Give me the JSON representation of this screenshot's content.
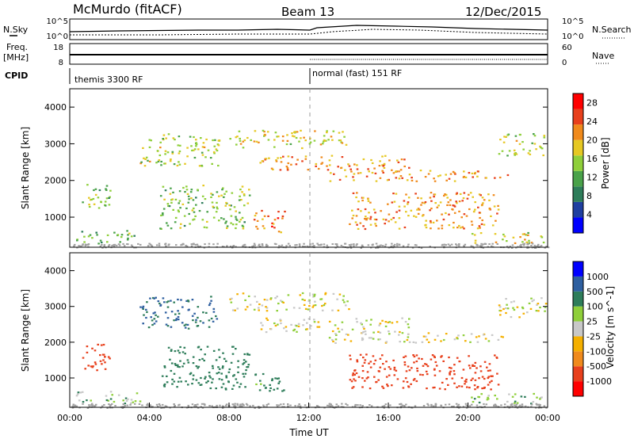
{
  "header": {
    "station": "McMurdo (fitACF)",
    "beam": "Beam 13",
    "date": "12/Dec/2015"
  },
  "top_panel": {
    "left_label": "N.Sky",
    "right_label": "N.Search",
    "left_ticks": [
      "10^5",
      "10^0"
    ],
    "right_ticks": [
      "10^5",
      "10^0"
    ]
  },
  "freq_panel": {
    "left_label_line1": "Freq.",
    "left_label_line2": "[MHz]",
    "right_label": "Nave",
    "left_ticks": [
      "18",
      "8"
    ],
    "right_ticks": [
      "60",
      "0"
    ]
  },
  "cpid_panel": {
    "label": "CPID",
    "segments": [
      "themis 3300 RF",
      "normal (fast) 151 RF"
    ]
  },
  "colors": {
    "power_scale": [
      "#0000ff",
      "#1f3fa0",
      "#2e7d5a",
      "#4aa24a",
      "#8fcf3a",
      "#e6c823",
      "#f08a1c",
      "#e8401c",
      "#ff0000"
    ],
    "velocity_scale": [
      "#ff0000",
      "#e8401c",
      "#f08a1c",
      "#f5b000",
      "#c8c8c8",
      "#8fcf3a",
      "#2e7d5a",
      "#2e5fa0",
      "#0000ff"
    ],
    "ground": "#a0a0a0"
  },
  "chart_data": [
    {
      "type": "heatmap",
      "panel": "power",
      "ylabel": "Slant Range [km]",
      "ylim": [
        180,
        4500
      ],
      "yticks": [
        "1000",
        "2000",
        "3000",
        "4000"
      ],
      "colorbar_label": "Power [dB]",
      "colorbar_ticks": [
        "4",
        "8",
        "12",
        "16",
        "20",
        "24",
        "28"
      ],
      "clim": [
        0,
        30
      ],
      "echo_regions": [
        {
          "t_start": 0.6,
          "t_end": 2.0,
          "r_min": 1200,
          "r_max": 2000,
          "value": 14
        },
        {
          "t_start": 0.3,
          "t_end": 3.5,
          "r_min": 300,
          "r_max": 650,
          "value": 12
        },
        {
          "t_start": 3.5,
          "t_end": 7.5,
          "r_min": 2400,
          "r_max": 3300,
          "value": 16
        },
        {
          "t_start": 4.5,
          "t_end": 9.0,
          "r_min": 700,
          "r_max": 1900,
          "value": 14
        },
        {
          "t_start": 9.2,
          "t_end": 10.8,
          "r_min": 600,
          "r_max": 1200,
          "value": 24
        },
        {
          "t_start": 8.0,
          "t_end": 14.0,
          "r_min": 2900,
          "r_max": 3400,
          "value": 18
        },
        {
          "t_start": 9.5,
          "t_end": 17.0,
          "r_min": 2300,
          "r_max": 2700,
          "value": 22
        },
        {
          "t_start": 13.0,
          "t_end": 22.0,
          "r_min": 2000,
          "r_max": 2300,
          "value": 22
        },
        {
          "t_start": 14.0,
          "t_end": 21.5,
          "r_min": 700,
          "r_max": 1700,
          "value": 22
        },
        {
          "t_start": 21.5,
          "t_end": 23.9,
          "r_min": 2700,
          "r_max": 3300,
          "value": 16
        },
        {
          "t_start": 20.0,
          "t_end": 23.8,
          "r_min": 300,
          "r_max": 600,
          "value": 18
        }
      ]
    },
    {
      "type": "heatmap",
      "panel": "velocity",
      "xlabel": "Time UT",
      "ylabel": "Slant Range [km]",
      "xlim": [
        0,
        24
      ],
      "ylim": [
        180,
        4500
      ],
      "xticks": [
        "00:00",
        "04:00",
        "08:00",
        "12:00",
        "16:00",
        "20:00",
        "00:00"
      ],
      "yticks": [
        "1000",
        "2000",
        "3000",
        "4000"
      ],
      "colorbar_label": "Velocity [m s^-1]",
      "colorbar_ticks": [
        "1000",
        "500",
        "100",
        "25",
        "-25",
        "-100",
        "-500",
        "-1000"
      ],
      "echo_regions": [
        {
          "t_start": 0.6,
          "t_end": 2.0,
          "r_min": 1200,
          "r_max": 2000,
          "value": -400
        },
        {
          "t_start": 0.3,
          "t_end": 3.5,
          "r_min": 300,
          "r_max": 650,
          "value": 60
        },
        {
          "t_start": 3.5,
          "t_end": 7.5,
          "r_min": 2400,
          "r_max": 3300,
          "value": 300
        },
        {
          "t_start": 4.5,
          "t_end": 9.0,
          "r_min": 700,
          "r_max": 1900,
          "value": 200
        },
        {
          "t_start": 9.2,
          "t_end": 10.8,
          "r_min": 600,
          "r_max": 1200,
          "value": 150
        },
        {
          "t_start": 8.0,
          "t_end": 14.0,
          "r_min": 2900,
          "r_max": 3400,
          "value": 0
        },
        {
          "t_start": 9.5,
          "t_end": 17.0,
          "r_min": 2300,
          "r_max": 2700,
          "value": 0
        },
        {
          "t_start": 13.0,
          "t_end": 22.0,
          "r_min": 2000,
          "r_max": 2300,
          "value": 0
        },
        {
          "t_start": 14.0,
          "t_end": 21.5,
          "r_min": 700,
          "r_max": 1700,
          "value": -400
        },
        {
          "t_start": 21.5,
          "t_end": 23.9,
          "r_min": 2700,
          "r_max": 3300,
          "value": 0
        },
        {
          "t_start": 20.0,
          "t_end": 23.8,
          "r_min": 300,
          "r_max": 600,
          "value": 60
        }
      ]
    }
  ]
}
